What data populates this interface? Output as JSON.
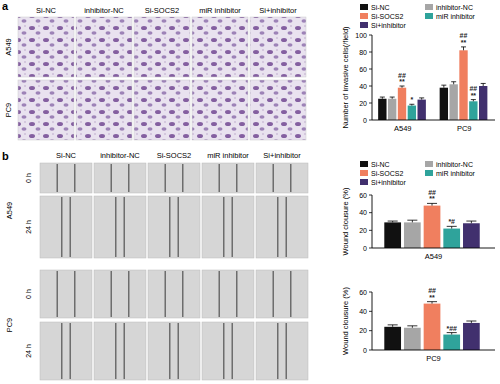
{
  "chart_data": [
    {
      "type": "bar",
      "y_label": "Number of invasive cells(/field)",
      "categories": [
        "A549",
        "PC9"
      ],
      "ylim": [
        0,
        100
      ],
      "yticks": [
        0,
        20,
        40,
        60,
        80,
        100
      ],
      "grid": false,
      "legend": "top",
      "series": [
        {
          "name": "Si-NC",
          "color": "#111111",
          "values": [
            25,
            38
          ],
          "errors": [
            2,
            3
          ]
        },
        {
          "name": "inhibitor-NC",
          "color": "#a6a6a6",
          "values": [
            25,
            42
          ],
          "errors": [
            2,
            3
          ]
        },
        {
          "name": "Si-SOCS2",
          "color": "#f07f5f",
          "values": [
            38,
            82
          ],
          "errors": [
            2,
            4
          ],
          "significance": [
            [
              "##",
              "**"
            ],
            [
              "##",
              "**"
            ]
          ]
        },
        {
          "name": "miR inhibitor",
          "color": "#2fa39b",
          "values": [
            17,
            22
          ],
          "errors": [
            1.5,
            2
          ],
          "significance": [
            [
              "*"
            ],
            [
              "##",
              "**"
            ]
          ]
        },
        {
          "name": "Si+inhibitor",
          "color": "#41306e",
          "values": [
            24,
            40
          ],
          "errors": [
            2,
            3
          ]
        }
      ]
    },
    {
      "type": "bar",
      "y_label": "Wound clousure (%)",
      "categories": [
        "A549"
      ],
      "ylim": [
        0,
        60
      ],
      "yticks": [
        0,
        20,
        40,
        60
      ],
      "grid": false,
      "legend": "top",
      "series": [
        {
          "name": "Si-NC",
          "color": "#111111",
          "values": [
            29
          ],
          "errors": [
            1.5
          ]
        },
        {
          "name": "inhibitor-NC",
          "color": "#a6a6a6",
          "values": [
            29
          ],
          "errors": [
            2.5
          ]
        },
        {
          "name": "Si-SOCS2",
          "color": "#f07f5f",
          "values": [
            48
          ],
          "errors": [
            2.5
          ],
          "significance": [
            [
              "##",
              "**"
            ]
          ]
        },
        {
          "name": "miR inhibitor",
          "color": "#2fa39b",
          "values": [
            22
          ],
          "errors": [
            2.5
          ],
          "significance": [
            [
              "*#"
            ]
          ]
        },
        {
          "name": "Si+inhibitor",
          "color": "#41306e",
          "values": [
            28
          ],
          "errors": [
            2.5
          ]
        }
      ]
    },
    {
      "type": "bar",
      "y_label": "Wound clousure (%)",
      "categories": [
        "PC9"
      ],
      "ylim": [
        0,
        60
      ],
      "yticks": [
        0,
        20,
        40,
        60
      ],
      "grid": false,
      "series": [
        {
          "color": "#111111",
          "values": [
            24
          ],
          "errors": [
            2
          ]
        },
        {
          "color": "#a6a6a6",
          "values": [
            23
          ],
          "errors": [
            2
          ]
        },
        {
          "color": "#f07f5f",
          "values": [
            48
          ],
          "errors": [
            2
          ],
          "significance": [
            [
              "##",
              "**"
            ]
          ]
        },
        {
          "color": "#2fa39b",
          "values": [
            16
          ],
          "errors": [
            2
          ],
          "significance": [
            [
              "*##"
            ]
          ]
        },
        {
          "color": "#41306e",
          "values": [
            28
          ],
          "errors": [
            2
          ]
        }
      ]
    }
  ],
  "figure": {
    "panel_labels": [
      "a",
      "b"
    ],
    "invasion_images": {
      "columns": [
        "Si-NC",
        "inhibitor-NC",
        "Si-SOCS2",
        "miR inhibitor",
        "Si+inhibitor"
      ],
      "rows": [
        "A549",
        "PC9"
      ]
    },
    "wound_images": {
      "columns": [
        "Si-NC",
        "inhibitor-NC",
        "Si-SOCS2",
        "miR inhibitor",
        "Si+inhibitor"
      ],
      "cell_lines": [
        "A549",
        "PC9"
      ],
      "times": [
        "0 h",
        "24 h"
      ]
    }
  }
}
